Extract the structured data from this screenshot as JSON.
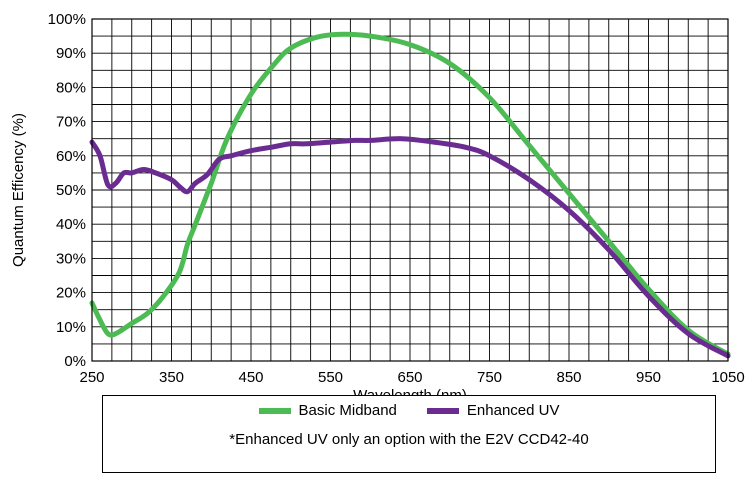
{
  "chart_data": {
    "type": "line",
    "xlabel": "Wavelength (nm)",
    "ylabel": "Quantum Efficency (%)",
    "xlim": [
      250,
      1050
    ],
    "ylim": [
      0,
      100
    ],
    "x_ticks": [
      250,
      350,
      450,
      550,
      650,
      750,
      850,
      950,
      1050
    ],
    "y_ticks": [
      0,
      10,
      20,
      30,
      40,
      50,
      60,
      70,
      80,
      90,
      100
    ],
    "y_tick_labels": [
      "0%",
      "10%",
      "20%",
      "30%",
      "40%",
      "50%",
      "60%",
      "70%",
      "80%",
      "90%",
      "100%"
    ],
    "grid": true,
    "legend_position": "bottom",
    "series": [
      {
        "name": "Basic Midband",
        "color": "#4cbb53",
        "points": [
          [
            250,
            17
          ],
          [
            260,
            12
          ],
          [
            270,
            8
          ],
          [
            280,
            8
          ],
          [
            300,
            11
          ],
          [
            320,
            14
          ],
          [
            340,
            19
          ],
          [
            360,
            26
          ],
          [
            370,
            34
          ],
          [
            380,
            40
          ],
          [
            400,
            52
          ],
          [
            420,
            65
          ],
          [
            450,
            78
          ],
          [
            480,
            87
          ],
          [
            500,
            91.5
          ],
          [
            530,
            94.5
          ],
          [
            560,
            95.5
          ],
          [
            600,
            95
          ],
          [
            650,
            92.5
          ],
          [
            700,
            87
          ],
          [
            750,
            77
          ],
          [
            800,
            63
          ],
          [
            850,
            49
          ],
          [
            900,
            35
          ],
          [
            950,
            21
          ],
          [
            1000,
            9
          ],
          [
            1050,
            2
          ]
        ]
      },
      {
        "name": "Enhanced UV",
        "color": "#6a2c91",
        "points": [
          [
            250,
            64
          ],
          [
            260,
            60
          ],
          [
            270,
            51.5
          ],
          [
            280,
            52
          ],
          [
            290,
            55
          ],
          [
            300,
            55
          ],
          [
            315,
            56
          ],
          [
            330,
            55
          ],
          [
            350,
            53
          ],
          [
            360,
            51
          ],
          [
            370,
            49.5
          ],
          [
            380,
            52
          ],
          [
            395,
            54.5
          ],
          [
            410,
            59
          ],
          [
            425,
            60
          ],
          [
            450,
            61.5
          ],
          [
            475,
            62.5
          ],
          [
            500,
            63.5
          ],
          [
            520,
            63.5
          ],
          [
            550,
            64
          ],
          [
            580,
            64.5
          ],
          [
            600,
            64.5
          ],
          [
            640,
            65
          ],
          [
            680,
            64
          ],
          [
            720,
            62.5
          ],
          [
            750,
            60
          ],
          [
            800,
            53
          ],
          [
            850,
            44
          ],
          [
            900,
            32.5
          ],
          [
            950,
            19
          ],
          [
            1000,
            8
          ],
          [
            1050,
            1.5
          ]
        ]
      }
    ],
    "note": "*Enhanced UV only an option with the E2V CCD42-40"
  },
  "legend": {
    "items": [
      {
        "label": "Basic Midband",
        "color": "#4cbb53"
      },
      {
        "label": "Enhanced UV",
        "color": "#6a2c91"
      }
    ],
    "note": "*Enhanced UV only an option with the E2V CCD42-40"
  }
}
